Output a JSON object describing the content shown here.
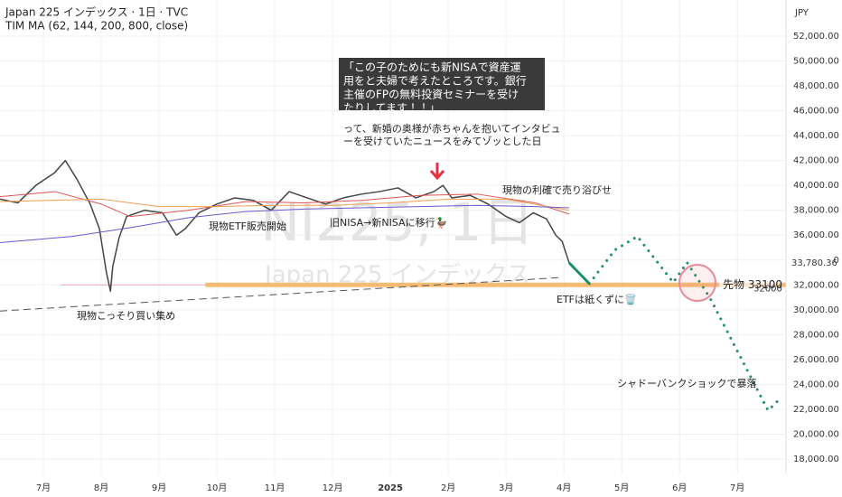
{
  "chart_data": {
    "type": "line",
    "title": "Japan 225 インデックス · 1日 · TVC",
    "subtitle": "TIM MA (62, 144, 200, 800, close)",
    "currency": "JPY",
    "watermark": [
      "NI225, 1日",
      "Japan 225 インデックス"
    ],
    "xlim": [
      -0.75,
      12.84
    ],
    "xticks": [
      {
        "value": 0,
        "label": "7月"
      },
      {
        "value": 1,
        "label": "8月"
      },
      {
        "value": 2,
        "label": "9月"
      },
      {
        "value": 3,
        "label": "10月"
      },
      {
        "value": 4,
        "label": "11月"
      },
      {
        "value": 5,
        "label": "12月"
      },
      {
        "value": 6,
        "label": "2025"
      },
      {
        "value": 7,
        "label": "2月"
      },
      {
        "value": 8,
        "label": "3月"
      },
      {
        "value": 9,
        "label": "4月"
      },
      {
        "value": 10,
        "label": "5月"
      },
      {
        "value": 11,
        "label": "6月"
      },
      {
        "value": 12,
        "label": "7月"
      }
    ],
    "ylim": [
      16766,
      54906
    ],
    "yticks": [
      {
        "value": 18000,
        "label": "18,000.00"
      },
      {
        "value": 20000,
        "label": "20,000.00"
      },
      {
        "value": 22000,
        "label": "22,000.00"
      },
      {
        "value": 24000,
        "label": "24,000.00"
      },
      {
        "value": 26000,
        "label": "26,000.00"
      },
      {
        "value": 28000,
        "label": "28,000.00"
      },
      {
        "value": 30000,
        "label": "30,000.00"
      },
      {
        "value": 32000,
        "label": "32,000.00"
      },
      {
        "value": 34000,
        "label": "34,000.00"
      },
      {
        "value": 36000,
        "label": "36,000.00"
      },
      {
        "value": 38000,
        "label": "38,000.00"
      },
      {
        "value": 40000,
        "label": "40,000.00"
      },
      {
        "value": 42000,
        "label": "42,000.00"
      },
      {
        "value": 44000,
        "label": "44,000.00"
      },
      {
        "value": 46000,
        "label": "46,000.00"
      },
      {
        "value": 48000,
        "label": "48,000.00"
      },
      {
        "value": 50000,
        "label": "50,000.00"
      },
      {
        "value": 52000,
        "label": "52,000.00"
      }
    ],
    "grid": true,
    "series": [
      {
        "color": "#444444",
        "style": "solid",
        "width": 1.5,
        "x": [
          -0.75,
          -0.44,
          -0.13,
          0.19,
          0.38,
          0.58,
          0.81,
          0.97,
          1.09,
          1.16,
          1.2,
          1.31,
          1.44,
          1.75,
          2.06,
          2.3,
          2.45,
          2.69,
          3.0,
          3.31,
          3.63,
          3.94,
          4.25,
          4.56,
          4.88,
          5.19,
          5.5,
          5.81,
          6.13,
          6.44,
          6.75,
          6.91,
          7.06,
          7.38,
          7.69,
          8.0,
          8.23,
          8.47,
          8.7,
          8.86,
          8.97,
          9.09
        ],
        "values": [
          38900,
          38600,
          40000,
          41000,
          42000,
          40500,
          38500,
          36500,
          33000,
          31500,
          33500,
          35800,
          37500,
          38000,
          37800,
          36000,
          36500,
          37800,
          38500,
          39000,
          38800,
          38000,
          39500,
          39000,
          38500,
          39000,
          39300,
          39500,
          39800,
          39000,
          39500,
          40000,
          39000,
          39200,
          38500,
          37500,
          37000,
          37800,
          37300,
          36000,
          35500,
          33780.36
        ]
      },
      {
        "color": "#e05555",
        "style": "solid",
        "width": 1,
        "x": [
          -0.75,
          0.2,
          1.0,
          1.5,
          2.5,
          3.5,
          4.5,
          5.5,
          6.5,
          7.5,
          8.5,
          9.09
        ],
        "values": [
          39100,
          39500,
          38500,
          37500,
          38000,
          38700,
          38600,
          38800,
          39200,
          39300,
          38600,
          37700
        ]
      },
      {
        "color": "#f0a050",
        "style": "solid",
        "width": 1,
        "x": [
          -0.75,
          1,
          2,
          3,
          4,
          5,
          6,
          7,
          8,
          9.09
        ],
        "values": [
          38700,
          38900,
          38300,
          38300,
          38400,
          38400,
          38600,
          38900,
          38900,
          38000
        ]
      },
      {
        "color": "#6a5acd",
        "style": "solid",
        "width": 1,
        "x": [
          -0.75,
          0.5,
          1.5,
          2.5,
          3.5,
          4.5,
          5.5,
          6.5,
          7.5,
          8.5,
          9.09
        ],
        "values": [
          35400,
          35900,
          36600,
          37400,
          37900,
          38100,
          38200,
          38300,
          38400,
          38300,
          38200
        ]
      },
      {
        "color": "#1e8f6a",
        "style": "solid",
        "width": 3,
        "x": [
          9.09,
          9.44
        ],
        "values": [
          33780.36,
          32100
        ]
      },
      {
        "color": "#1e8f6a",
        "style": "dotted",
        "width": 3,
        "x": [
          9.44,
          9.88,
          10.27,
          10.89,
          11.13,
          11.52,
          12.53,
          12.77
        ],
        "values": [
          32100,
          34800,
          35900,
          32200,
          33800,
          31000,
          21900,
          23000
        ]
      }
    ],
    "price_tag": {
      "value": 33780.36,
      "label": "33,780.36"
    },
    "levels": [
      {
        "value": 32000,
        "from": 0.3,
        "color": "#e8a0b0",
        "width": 1
      },
      {
        "value": 32000,
        "from": 2.8,
        "color": "#f5b560",
        "width": 5
      }
    ],
    "level_labels": [
      {
        "value": 32000,
        "label": "32000"
      },
      {
        "value": 33100,
        "label": "先物 33100"
      }
    ],
    "trendline": {
      "x": [
        -0.75,
        8.97
      ],
      "values": [
        29900,
        32600
      ]
    },
    "quote_box": [
      "「この子のためにも新NISAで資産運",
      "用をと夫婦で考えたところです。銀行",
      "主催のFPの無料投資セミナーを受け",
      "たりしてます！！」"
    ],
    "annotations": [
      "って、新婚の奥様が赤ちゃんを抱いてインタビュ",
      "ーを受けていたニュースをみてゾッとした日",
      "現物の利確で売り浴びせ",
      "現物ETF販売開始",
      "旧NISA→新NISAに移行🦆",
      "現物こっそり買い集め",
      "ETFは紙くずに🗑️",
      "シャドーバンクショックで暴落"
    ]
  }
}
